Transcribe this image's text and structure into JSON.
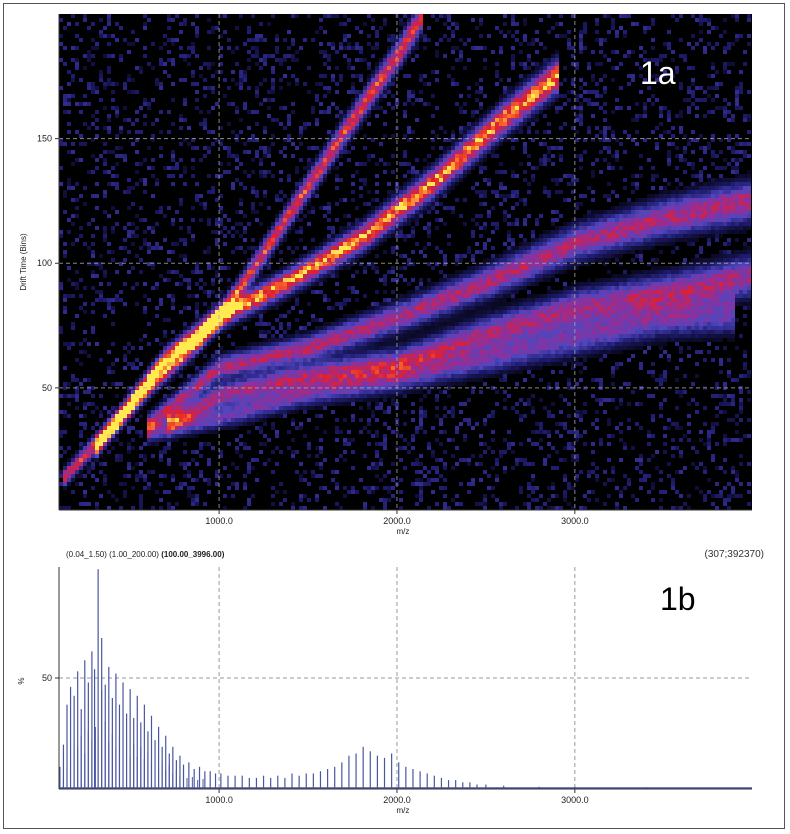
{
  "colors": {
    "heatmap_bg": "#000000",
    "heat_low": "#2a2a9c",
    "heat_mid": "#7a3aa8",
    "heat_high": "#e0202a",
    "heat_peak": "#ffe040",
    "spectrum_line": "#4a56a0",
    "grid": "#9a9a9a",
    "panel_label_top": "#ffffff",
    "panel_label_bottom": "#000000"
  },
  "panel_a": {
    "panel_label": "1a"
  },
  "panel_b": {
    "panel_label": "1b",
    "range_prefix": "(0.04_1.50) (1.00_200.00)",
    "range_bold": "(100.00_3996.00)",
    "counts": "(307;392370)"
  },
  "chart_data": [
    {
      "type": "heatmap",
      "title": "",
      "xlabel": "m/z",
      "ylabel": "Drift Time (Bins)",
      "xlim": [
        100,
        3996
      ],
      "ylim": [
        1,
        200
      ],
      "x_ticks": [
        "1000.0",
        "2000.0",
        "3000.0"
      ],
      "x_tick_values": [
        1000,
        2000,
        3000
      ],
      "y_ticks": [
        "50",
        "100",
        "150"
      ],
      "y_tick_values": [
        50,
        100,
        150
      ],
      "grid": true,
      "colormap": "black-blue-purple-red-yellow",
      "bands": [
        {
          "points": [
            [
              130,
              14
            ],
            [
              600,
              50
            ],
            [
              750,
              60
            ],
            [
              900,
              70
            ],
            [
              1100,
              88
            ],
            [
              1400,
              120
            ],
            [
              1700,
              152
            ],
            [
              2000,
              183
            ],
            [
              2150,
              200
            ]
          ],
          "intensity": 0.85
        },
        {
          "points": [
            [
              300,
              25
            ],
            [
              700,
              62
            ],
            [
              1000,
              78
            ],
            [
              1400,
              93
            ],
            [
              1800,
              110
            ],
            [
              2200,
              132
            ],
            [
              2600,
              158
            ],
            [
              2900,
              175
            ]
          ],
          "intensity": 1.0
        },
        {
          "points": [
            [
              600,
              35
            ],
            [
              1000,
              58
            ],
            [
              1500,
              66
            ],
            [
              2000,
              78
            ],
            [
              2500,
              92
            ],
            [
              3000,
              108
            ],
            [
              3500,
              118
            ],
            [
              3996,
              125
            ]
          ],
          "intensity": 0.7
        },
        {
          "points": [
            [
              700,
              35
            ],
            [
              1000,
              47
            ],
            [
              1500,
              55
            ],
            [
              2000,
              60
            ],
            [
              2500,
              72
            ],
            [
              3000,
              82
            ],
            [
              3500,
              88
            ],
            [
              3996,
              95
            ]
          ],
          "intensity": 0.65
        },
        {
          "points": [
            [
              600,
              32
            ],
            [
              1100,
              40
            ],
            [
              1500,
              48
            ],
            [
              2000,
              54
            ],
            [
              2500,
              62
            ],
            [
              3000,
              70
            ],
            [
              3500,
              78
            ],
            [
              3900,
              80
            ]
          ],
          "intensity": 0.5
        }
      ]
    },
    {
      "type": "line",
      "title": "",
      "xlabel": "m/z",
      "ylabel": "%",
      "xlim": [
        100,
        3996
      ],
      "ylim": [
        0,
        100
      ],
      "x_ticks": [
        "1000.0",
        "2000.0",
        "3000.0"
      ],
      "x_tick_values": [
        1000,
        2000,
        3000
      ],
      "y_ticks": [
        "50"
      ],
      "y_tick_values": [
        50
      ],
      "grid": true,
      "peaks": [
        {
          "mz": 105,
          "i": 10
        },
        {
          "mz": 125,
          "i": 20
        },
        {
          "mz": 145,
          "i": 38
        },
        {
          "mz": 165,
          "i": 46
        },
        {
          "mz": 185,
          "i": 42
        },
        {
          "mz": 205,
          "i": 53
        },
        {
          "mz": 225,
          "i": 36
        },
        {
          "mz": 245,
          "i": 58
        },
        {
          "mz": 265,
          "i": 48
        },
        {
          "mz": 285,
          "i": 62
        },
        {
          "mz": 300,
          "i": 54
        },
        {
          "mz": 320,
          "i": 99
        },
        {
          "mz": 340,
          "i": 68
        },
        {
          "mz": 360,
          "i": 47
        },
        {
          "mz": 380,
          "i": 55
        },
        {
          "mz": 400,
          "i": 41
        },
        {
          "mz": 420,
          "i": 52
        },
        {
          "mz": 440,
          "i": 38
        },
        {
          "mz": 460,
          "i": 48
        },
        {
          "mz": 480,
          "i": 34
        },
        {
          "mz": 500,
          "i": 45
        },
        {
          "mz": 520,
          "i": 32
        },
        {
          "mz": 540,
          "i": 42
        },
        {
          "mz": 560,
          "i": 30
        },
        {
          "mz": 580,
          "i": 38
        },
        {
          "mz": 600,
          "i": 26
        },
        {
          "mz": 620,
          "i": 33
        },
        {
          "mz": 640,
          "i": 22
        },
        {
          "mz": 660,
          "i": 28
        },
        {
          "mz": 680,
          "i": 19
        },
        {
          "mz": 700,
          "i": 24
        },
        {
          "mz": 720,
          "i": 16
        },
        {
          "mz": 740,
          "i": 19
        },
        {
          "mz": 760,
          "i": 13
        },
        {
          "mz": 780,
          "i": 15
        },
        {
          "mz": 800,
          "i": 11
        },
        {
          "mz": 830,
          "i": 12
        },
        {
          "mz": 860,
          "i": 9
        },
        {
          "mz": 890,
          "i": 10
        },
        {
          "mz": 920,
          "i": 8
        },
        {
          "mz": 950,
          "i": 8
        },
        {
          "mz": 980,
          "i": 7
        },
        {
          "mz": 1010,
          "i": 7
        },
        {
          "mz": 1050,
          "i": 6
        },
        {
          "mz": 1090,
          "i": 6
        },
        {
          "mz": 1130,
          "i": 6
        },
        {
          "mz": 1170,
          "i": 5
        },
        {
          "mz": 1210,
          "i": 5
        },
        {
          "mz": 1250,
          "i": 6
        },
        {
          "mz": 1290,
          "i": 5
        },
        {
          "mz": 1330,
          "i": 6
        },
        {
          "mz": 1370,
          "i": 5
        },
        {
          "mz": 1410,
          "i": 7
        },
        {
          "mz": 1450,
          "i": 6
        },
        {
          "mz": 1490,
          "i": 7
        },
        {
          "mz": 1530,
          "i": 7
        },
        {
          "mz": 1570,
          "i": 8
        },
        {
          "mz": 1610,
          "i": 9
        },
        {
          "mz": 1650,
          "i": 10
        },
        {
          "mz": 1690,
          "i": 12
        },
        {
          "mz": 1730,
          "i": 15
        },
        {
          "mz": 1770,
          "i": 16
        },
        {
          "mz": 1810,
          "i": 19
        },
        {
          "mz": 1850,
          "i": 17
        },
        {
          "mz": 1890,
          "i": 15
        },
        {
          "mz": 1930,
          "i": 14
        },
        {
          "mz": 1970,
          "i": 16
        },
        {
          "mz": 2010,
          "i": 12
        },
        {
          "mz": 2050,
          "i": 10
        },
        {
          "mz": 2090,
          "i": 9
        },
        {
          "mz": 2130,
          "i": 8
        },
        {
          "mz": 2170,
          "i": 7
        },
        {
          "mz": 2210,
          "i": 6
        },
        {
          "mz": 2250,
          "i": 5
        },
        {
          "mz": 2290,
          "i": 4
        },
        {
          "mz": 2330,
          "i": 4
        },
        {
          "mz": 2370,
          "i": 3
        },
        {
          "mz": 2410,
          "i": 3
        },
        {
          "mz": 2450,
          "i": 2
        },
        {
          "mz": 2500,
          "i": 2
        },
        {
          "mz": 2600,
          "i": 1.5
        },
        {
          "mz": 2800,
          "i": 1
        },
        {
          "mz": 3000,
          "i": 1
        },
        {
          "mz": 3400,
          "i": 0.8
        },
        {
          "mz": 3900,
          "i": 0.6
        }
      ]
    }
  ]
}
